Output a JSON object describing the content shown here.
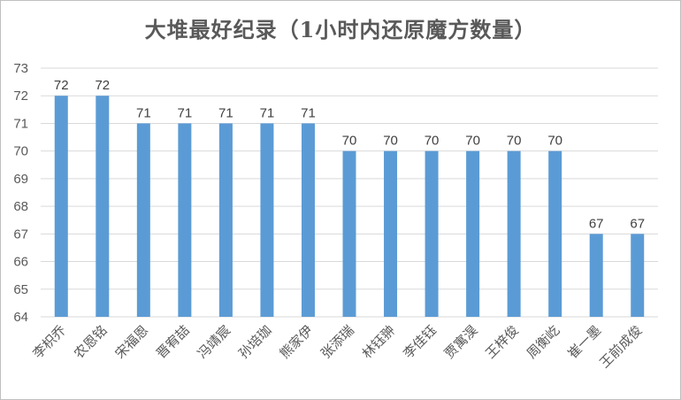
{
  "chart_data": {
    "type": "bar",
    "title": "大堆最好纪录（1小时内还原魔方数量）",
    "categories": [
      "李枳乔",
      "农恩铭",
      "宋福恩",
      "晋宥喆",
      "冯靖宸",
      "孙培珈",
      "熊家伊",
      "张添瑞",
      "林钰翀",
      "李佳钰",
      "贾寓淏",
      "王梓俊",
      "周衡屹",
      "崔一墨",
      "王前成俊"
    ],
    "values": [
      72,
      72,
      71,
      71,
      71,
      71,
      71,
      70,
      70,
      70,
      70,
      70,
      70,
      67,
      67
    ],
    "ylim": [
      64,
      73
    ],
    "yticks": [
      64,
      65,
      66,
      67,
      68,
      69,
      70,
      71,
      72,
      73
    ],
    "xlabel": "",
    "ylabel": "",
    "grid": true,
    "legend": "none",
    "bar_color": "#5B9BD5",
    "grid_color": "#d9d9d9"
  }
}
